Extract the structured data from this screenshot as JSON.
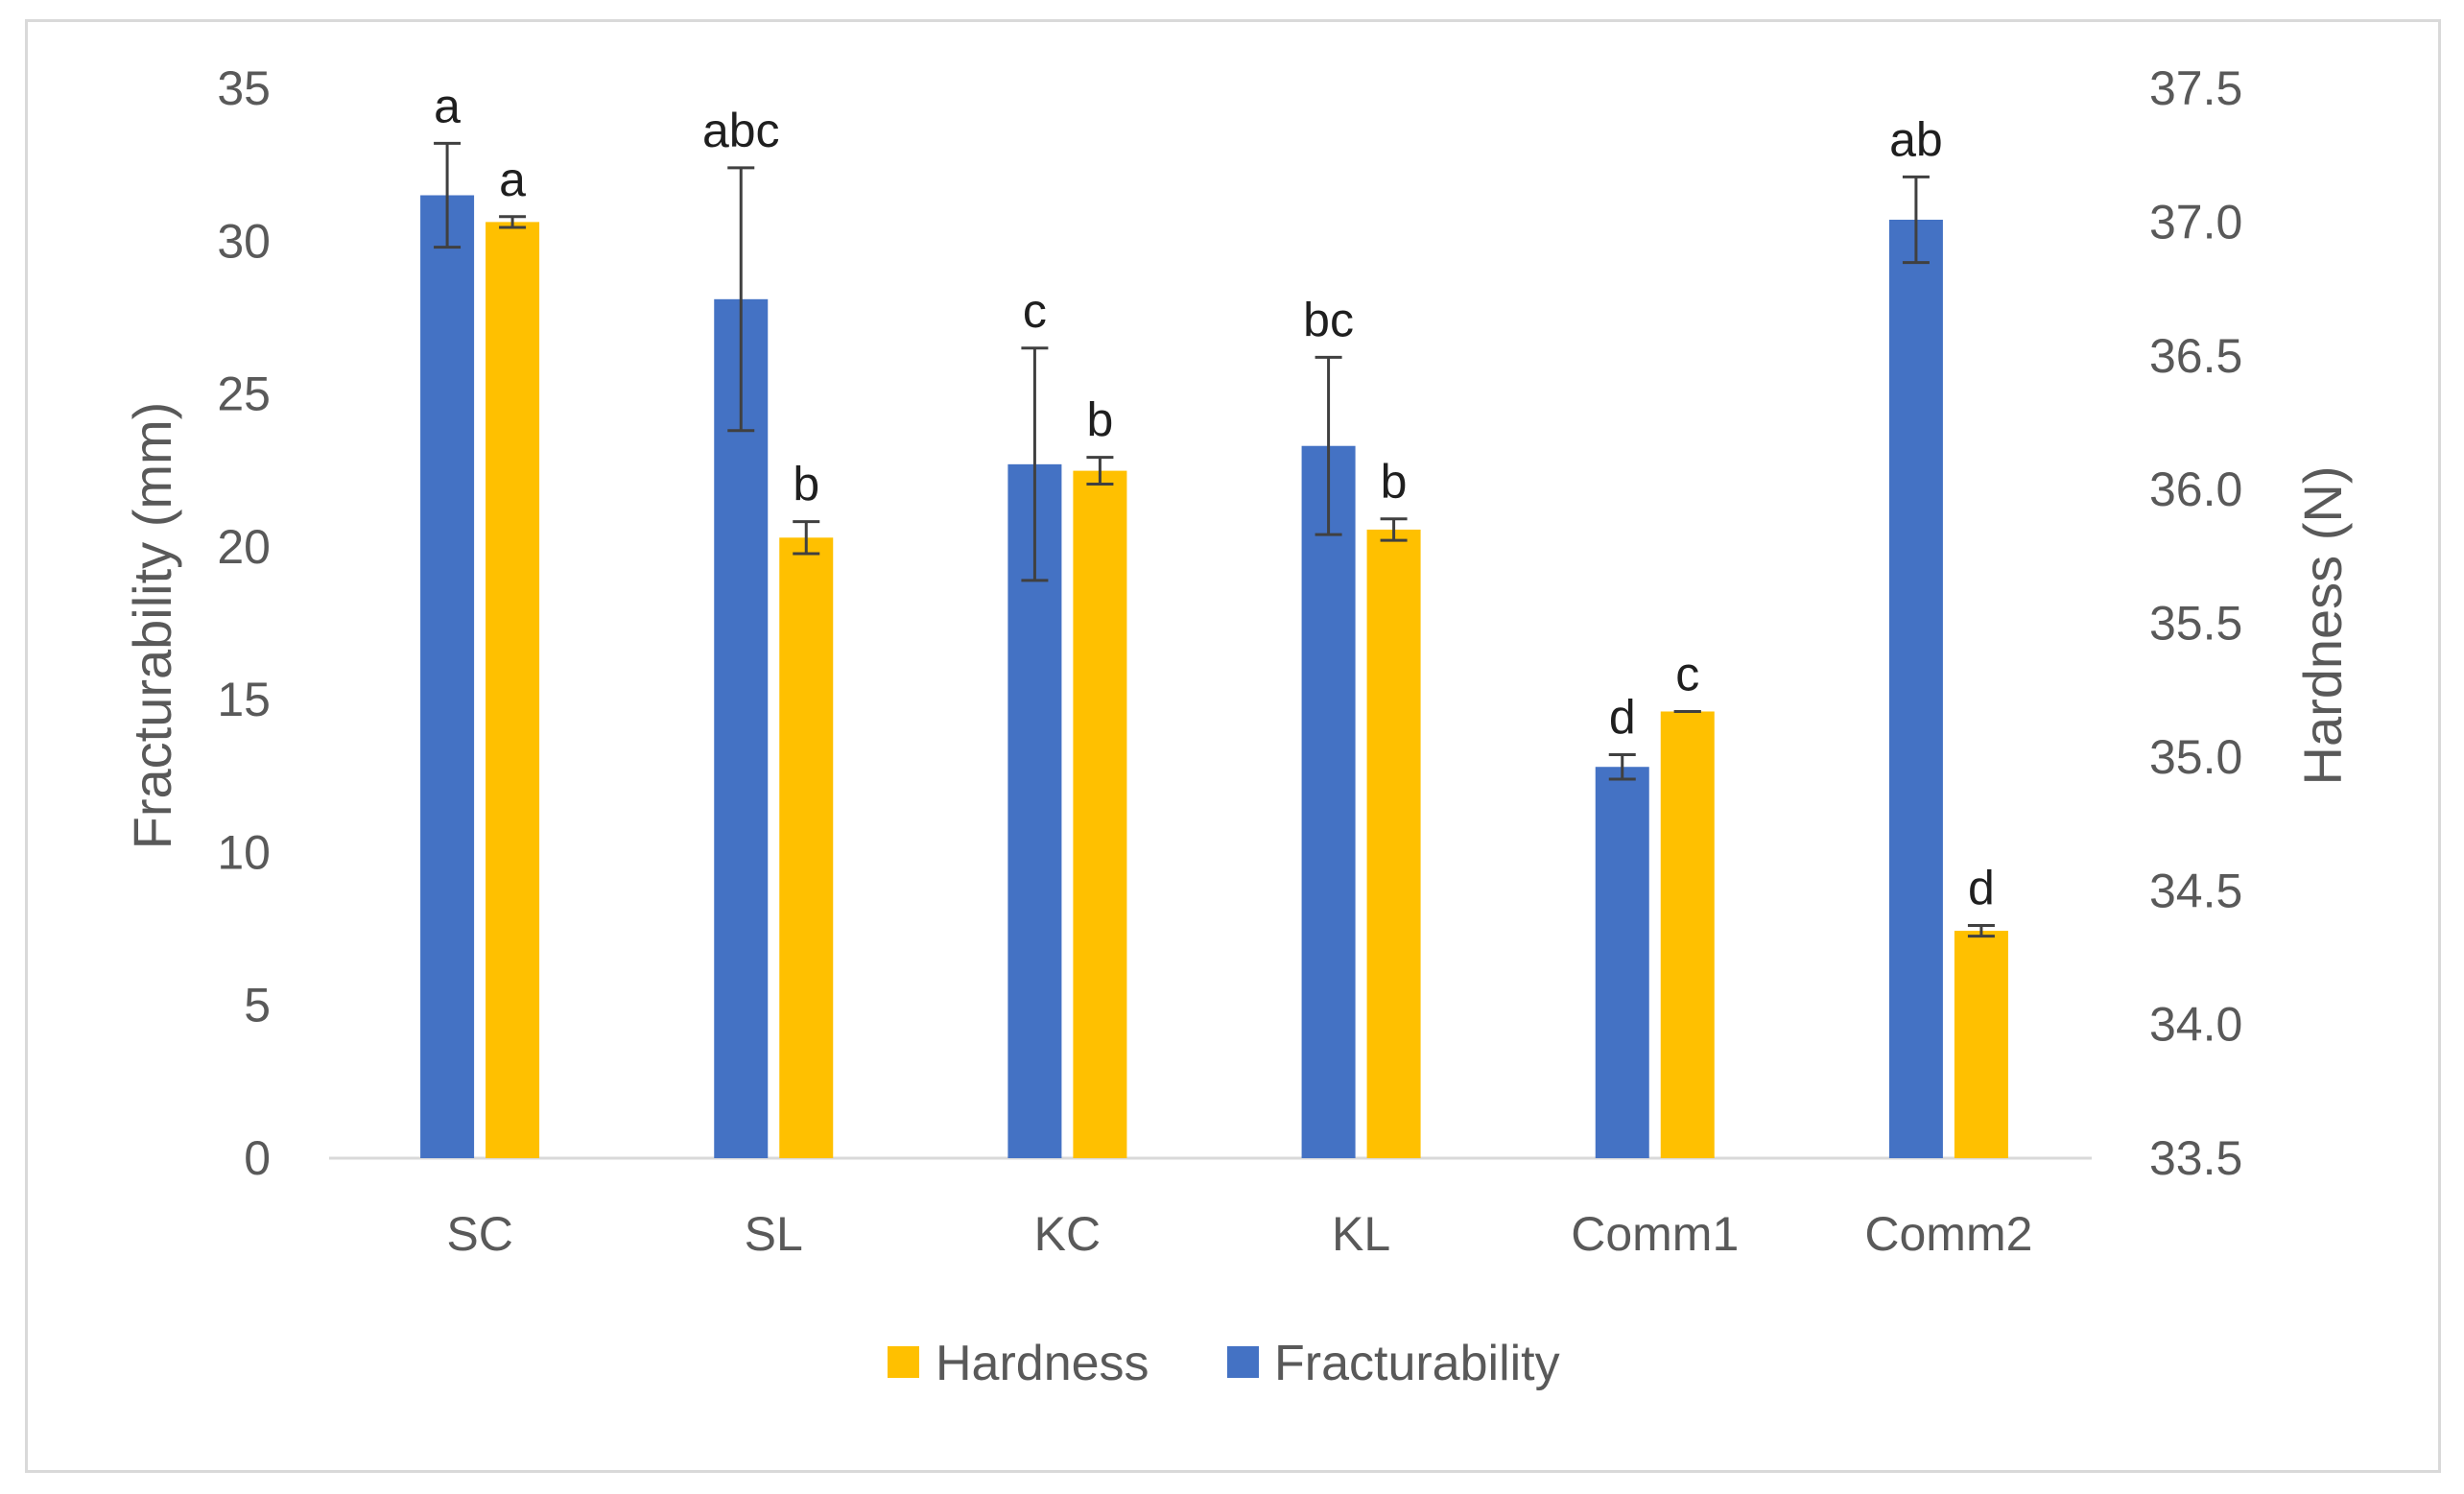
{
  "chart_data": {
    "type": "bar",
    "categories": [
      "SC",
      "SL",
      "KC",
      "KL",
      "Comm1",
      "Comm2"
    ],
    "series": [
      {
        "name": "Fracturability",
        "axis": "left",
        "color": "#4472c4",
        "values": [
          31.5,
          28.1,
          22.7,
          23.3,
          12.8,
          30.7
        ],
        "errors": [
          1.7,
          4.3,
          3.8,
          2.9,
          0.4,
          1.4
        ],
        "letters": [
          "a",
          "abc",
          "c",
          "bc",
          "d",
          "ab"
        ]
      },
      {
        "name": "Hardness",
        "axis": "right",
        "color": "#ffc000",
        "values": [
          37.0,
          35.82,
          36.07,
          35.85,
          35.17,
          34.35
        ],
        "errors": [
          0.02,
          0.06,
          0.05,
          0.04,
          0.0,
          0.02
        ],
        "letters": [
          "a",
          "b",
          "b",
          "b",
          "c",
          "d"
        ]
      }
    ],
    "y_left": {
      "label": "Fracturability (mm)",
      "range": [
        0,
        35
      ],
      "ticks": [
        0,
        5,
        10,
        15,
        20,
        25,
        30,
        35
      ]
    },
    "y_right": {
      "label": "Hardness (N)",
      "range": [
        33.5,
        37.5
      ],
      "ticks": [
        "33.5",
        "34.0",
        "34.5",
        "35.0",
        "35.5",
        "36.0",
        "36.5",
        "37.0",
        "37.5"
      ]
    },
    "legend": {
      "position": "bottom",
      "order": [
        "Hardness",
        "Fracturability"
      ]
    },
    "grid": false
  }
}
